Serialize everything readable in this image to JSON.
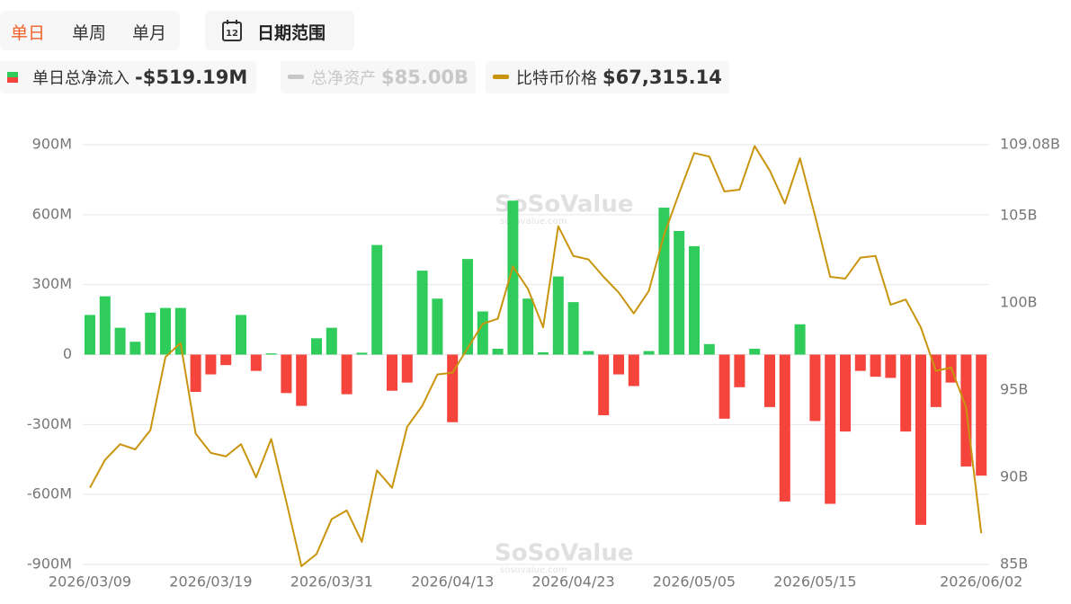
{
  "controls": {
    "tabs": [
      "单日",
      "单周",
      "单月"
    ],
    "calendar_day": "12",
    "date_range": "日期范围"
  },
  "watermark": {
    "brand": "SoSoValue",
    "url": "sosovalue.com"
  },
  "chart_data": {
    "type": "bar",
    "categories": [
      "2026/03/09",
      null,
      null,
      null,
      null,
      null,
      null,
      null,
      "2026/03/19",
      null,
      null,
      null,
      null,
      null,
      null,
      null,
      "2026/03/31",
      null,
      null,
      null,
      null,
      null,
      null,
      null,
      "2026/04/13",
      null,
      null,
      null,
      null,
      null,
      null,
      null,
      "2026/04/23",
      null,
      null,
      null,
      null,
      null,
      null,
      null,
      "2026/05/05",
      null,
      null,
      null,
      null,
      null,
      null,
      null,
      "2026/05/15",
      null,
      null,
      null,
      null,
      null,
      null,
      null,
      null,
      null,
      null,
      "2026/06/02"
    ],
    "series": [
      {
        "type": "bar",
        "name": "单日总净流入",
        "legend_value": "-$519.19M",
        "color": "#2fcc5b",
        "negative_color": "#f4443c",
        "values": [
          170,
          250,
          115,
          55,
          180,
          200,
          200,
          -160,
          -85,
          -45,
          170,
          -70,
          5,
          -165,
          -220,
          70,
          115,
          -170,
          8,
          470,
          -155,
          -120,
          360,
          240,
          -290,
          410,
          185,
          25,
          660,
          240,
          10,
          335,
          225,
          15,
          -260,
          -85,
          -135,
          15,
          630,
          530,
          465,
          45,
          -275,
          -140,
          25,
          -225,
          -630,
          130,
          -285,
          -640,
          -330,
          -70,
          -95,
          -100,
          -330,
          -730,
          -225,
          -120,
          -480,
          -519.19
        ]
      },
      {
        "type": "line",
        "axis": "y2",
        "name": "比特币价格",
        "legend_value": "$67,315.14",
        "color": "#c9950e",
        "values": [
          89.4,
          91.0,
          91.9,
          91.6,
          92.7,
          96.9,
          97.7,
          92.5,
          91.4,
          91.2,
          91.9,
          90.0,
          92.2,
          88.6,
          84.9,
          85.6,
          87.6,
          88.1,
          86.3,
          90.4,
          89.4,
          92.9,
          94.1,
          95.9,
          96.0,
          97.4,
          98.8,
          99.1,
          102.1,
          100.8,
          98.6,
          104.4,
          102.7,
          102.5,
          101.5,
          100.6,
          99.4,
          100.7,
          103.9,
          106.3,
          108.6,
          108.4,
          106.4,
          106.5,
          109.0,
          107.6,
          105.7,
          108.3,
          105.0,
          101.5,
          101.4,
          102.6,
          102.7,
          99.9,
          100.2,
          98.6,
          96.1,
          96.3,
          94.0,
          86.8
        ]
      }
    ],
    "hidden_series": [
      {
        "name": "总净资产",
        "legend_value": "$85.00B",
        "color": "#c8c8c8"
      }
    ],
    "ylim": [
      -900,
      900
    ],
    "yticks": [
      {
        "value": -900,
        "label": "-900M"
      },
      {
        "value": -600,
        "label": "-600M"
      },
      {
        "value": -300,
        "label": "-300M"
      },
      0,
      {
        "value": 300,
        "label": "300M"
      },
      {
        "value": 600,
        "label": "600M"
      },
      {
        "value": 900,
        "label": "900M"
      }
    ],
    "y2lim": [
      85,
      109.08
    ],
    "y2ticks": [
      {
        "value": 85,
        "label": "85B"
      },
      {
        "value": 90,
        "label": "90B"
      },
      {
        "value": 95,
        "label": "95B"
      },
      {
        "value": 100,
        "label": "100B"
      },
      {
        "value": 105,
        "label": "105B"
      },
      {
        "value": 109.08,
        "label": "109.08B"
      }
    ],
    "grid": true
  }
}
